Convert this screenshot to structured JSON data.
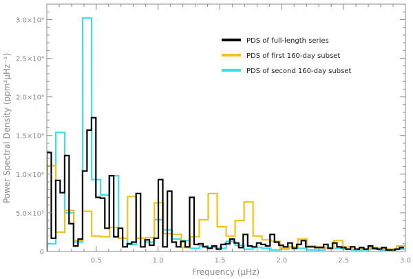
{
  "chart_data": {
    "type": "line",
    "style": "step",
    "xlabel": "Frequency (μHz)",
    "ylabel": "Power Spectral Density (ppm²μHz⁻¹)",
    "xlim": [
      0.1,
      3.0
    ],
    "ylim": [
      0,
      32000
    ],
    "x_ticks": [
      {
        "value": 0.5,
        "label": "0.5"
      },
      {
        "value": 1.0,
        "label": "1.0"
      },
      {
        "value": 1.5,
        "label": "1.5"
      },
      {
        "value": 2.0,
        "label": "2.0"
      },
      {
        "value": 2.5,
        "label": "2.5"
      },
      {
        "value": 3.0,
        "label": "3.0"
      }
    ],
    "y_ticks": [
      {
        "value": 0,
        "label": "0"
      },
      {
        "value": 5000,
        "label": "5.0×10³"
      },
      {
        "value": 10000,
        "label": "1.0×10⁴"
      },
      {
        "value": 15000,
        "label": "1.5×10⁴"
      },
      {
        "value": 20000,
        "label": "2.0×10⁴"
      },
      {
        "value": 25000,
        "label": "2.5×10⁴"
      },
      {
        "value": 30000,
        "label": "3.0×10⁴"
      }
    ],
    "grid": false,
    "legend_position": "top-right",
    "series": [
      {
        "name": "PDS of full-length series",
        "color": "#000000",
        "bin_width": 0.0361,
        "x": [
          0.1,
          0.136,
          0.172,
          0.208,
          0.244,
          0.28,
          0.316,
          0.353,
          0.389,
          0.425,
          0.461,
          0.497,
          0.533,
          0.569,
          0.605,
          0.641,
          0.677,
          0.714,
          0.75,
          0.786,
          0.822,
          0.858,
          0.894,
          0.93,
          0.966,
          1.002,
          1.038,
          1.075,
          1.111,
          1.147,
          1.183,
          1.219,
          1.255,
          1.291,
          1.327,
          1.363,
          1.399,
          1.436,
          1.472,
          1.508,
          1.544,
          1.58,
          1.616,
          1.652,
          1.688,
          1.724,
          1.76,
          1.797,
          1.833,
          1.869,
          1.905,
          1.941,
          1.977,
          2.013,
          2.049,
          2.085,
          2.121,
          2.158,
          2.194,
          2.23,
          2.266,
          2.302,
          2.338,
          2.374,
          2.41,
          2.446,
          2.482,
          2.519,
          2.555,
          2.591,
          2.627,
          2.663,
          2.699,
          2.735,
          2.771,
          2.807,
          2.843,
          2.88,
          2.916,
          2.952
        ],
        "y": [
          12800,
          1700,
          9200,
          7600,
          12400,
          3600,
          700,
          1600,
          10400,
          15700,
          17300,
          7000,
          6900,
          3000,
          9800,
          1900,
          3000,
          600,
          1000,
          1200,
          7500,
          600,
          1500,
          800,
          1700,
          9300,
          600,
          7800,
          1200,
          600,
          1300,
          600,
          7000,
          900,
          1000,
          600,
          400,
          700,
          300,
          900,
          1000,
          1600,
          1100,
          500,
          2200,
          700,
          600,
          1100,
          900,
          700,
          2200,
          1200,
          800,
          600,
          1100,
          400,
          900,
          1400,
          600,
          600,
          500,
          500,
          900,
          400,
          1100,
          600,
          500,
          300,
          600,
          300,
          500,
          300,
          700,
          400,
          300,
          500,
          200,
          200,
          300,
          500
        ]
      },
      {
        "name": "PDS of first 160-day subset",
        "color": "#f2c018",
        "bin_width": 0.0725,
        "x": [
          0.1,
          0.173,
          0.245,
          0.318,
          0.39,
          0.463,
          0.535,
          0.608,
          0.68,
          0.753,
          0.825,
          0.898,
          0.97,
          1.043,
          1.115,
          1.188,
          1.26,
          1.333,
          1.405,
          1.478,
          1.55,
          1.623,
          1.695,
          1.768,
          1.84,
          1.913,
          1.985,
          2.058,
          2.13,
          2.203,
          2.275,
          2.348,
          2.42,
          2.493,
          2.565,
          2.638,
          2.71,
          2.783,
          2.855,
          2.928
        ],
        "y": [
          11100,
          2500,
          5300,
          1400,
          5200,
          2000,
          1900,
          3100,
          1700,
          7100,
          1700,
          1800,
          6300,
          2300,
          2200,
          500,
          1900,
          4100,
          7500,
          3200,
          2000,
          4000,
          6400,
          2000,
          1500,
          1300,
          400,
          600,
          1600,
          700,
          600,
          400,
          1400,
          600,
          300,
          300,
          500,
          400,
          300,
          700
        ]
      },
      {
        "name": "PDS of second 160-day subset",
        "color": "#33e0f2",
        "bin_width": 0.0725,
        "x": [
          0.1,
          0.173,
          0.245,
          0.318,
          0.39,
          0.463,
          0.535,
          0.608,
          0.68,
          0.753,
          0.825,
          0.898,
          0.97,
          1.043,
          1.115,
          1.188,
          1.26,
          1.333,
          1.405,
          1.478,
          1.55,
          1.623,
          1.695,
          1.768,
          1.84,
          1.913,
          1.985,
          2.058,
          2.13,
          2.203,
          2.275,
          2.348,
          2.42,
          2.493,
          2.565,
          2.638,
          2.71,
          2.783,
          2.855,
          2.928
        ],
        "y": [
          1000,
          15400,
          5000,
          1200,
          30200,
          9300,
          7300,
          9800,
          1700,
          900,
          1700,
          1200,
          4100,
          2800,
          1600,
          1400,
          400,
          700,
          500,
          400,
          1300,
          800,
          300,
          500,
          400,
          200,
          300,
          600,
          400,
          200,
          200,
          500,
          400,
          300,
          200,
          200,
          300,
          200,
          200,
          300
        ]
      }
    ]
  }
}
